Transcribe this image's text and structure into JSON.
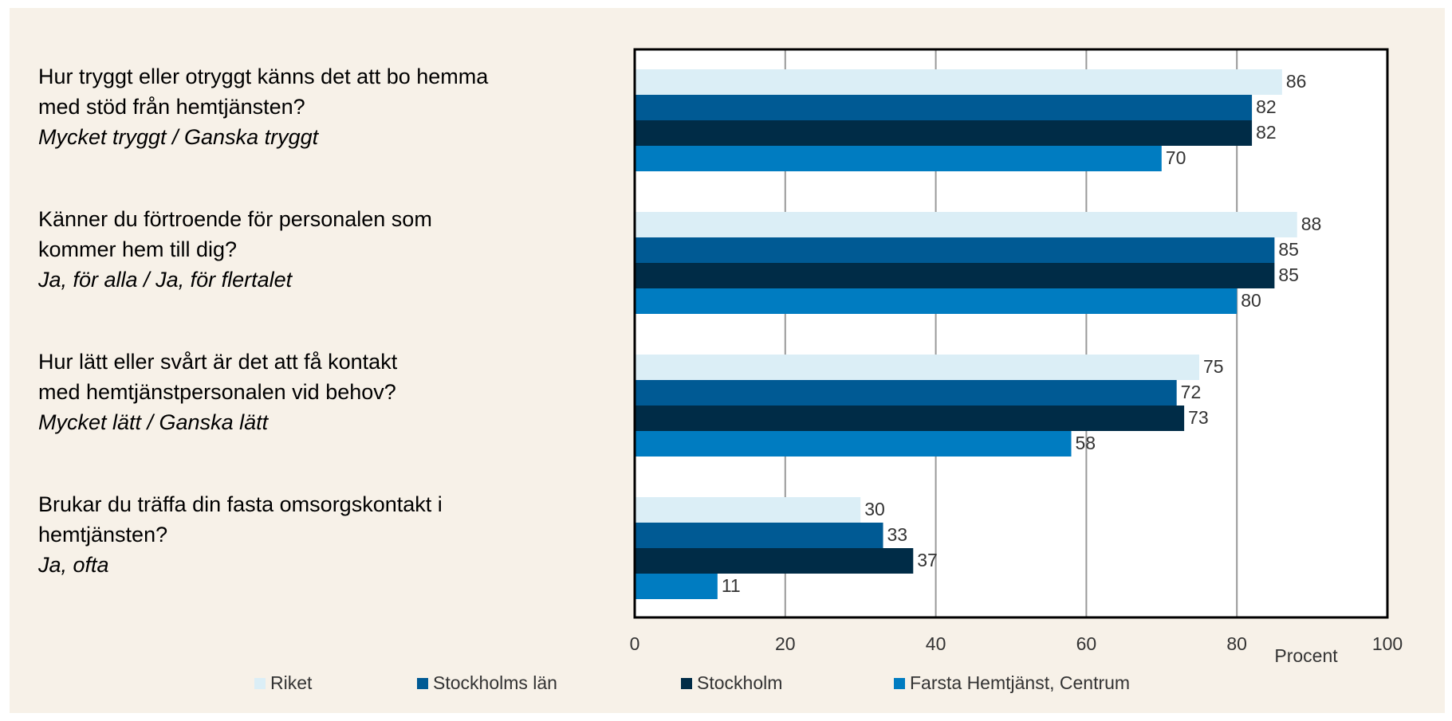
{
  "chart_data": {
    "type": "bar",
    "orientation": "horizontal",
    "categories": [
      {
        "question_lines": [
          "Hur tryggt eller otryggt känns det att bo hemma",
          "med stöd från hemtjänsten?"
        ],
        "answer": "Mycket tryggt / Ganska tryggt"
      },
      {
        "question_lines": [
          "Känner du förtroende för personalen som",
          "kommer hem till dig?"
        ],
        "answer": "Ja, för alla / Ja, för flertalet"
      },
      {
        "question_lines": [
          "Hur lätt eller svårt är det att få kontakt",
          "med hemtjänstpersonalen vid behov?"
        ],
        "answer": "Mycket lätt / Ganska lätt"
      },
      {
        "question_lines": [
          "Brukar du träffa din fasta omsorgskontakt i",
          "hemtjänsten?"
        ],
        "answer": "Ja, ofta"
      }
    ],
    "series": [
      {
        "name": "Riket",
        "color": "#dbeef6",
        "values": [
          86,
          88,
          75,
          30
        ]
      },
      {
        "name": "Stockholms län",
        "color": "#005a94",
        "values": [
          82,
          85,
          72,
          33
        ]
      },
      {
        "name": "Stockholm",
        "color": "#002c47",
        "values": [
          82,
          85,
          73,
          37
        ]
      },
      {
        "name": "Farsta Hemtjänst, Centrum",
        "color": "#007cc1",
        "values": [
          70,
          80,
          58,
          11
        ]
      }
    ],
    "xlabel": "Procent",
    "xlim": [
      0,
      100
    ],
    "xticks": [
      0,
      20,
      40,
      60,
      80,
      100
    ],
    "grid": true,
    "legend": "bottom"
  }
}
